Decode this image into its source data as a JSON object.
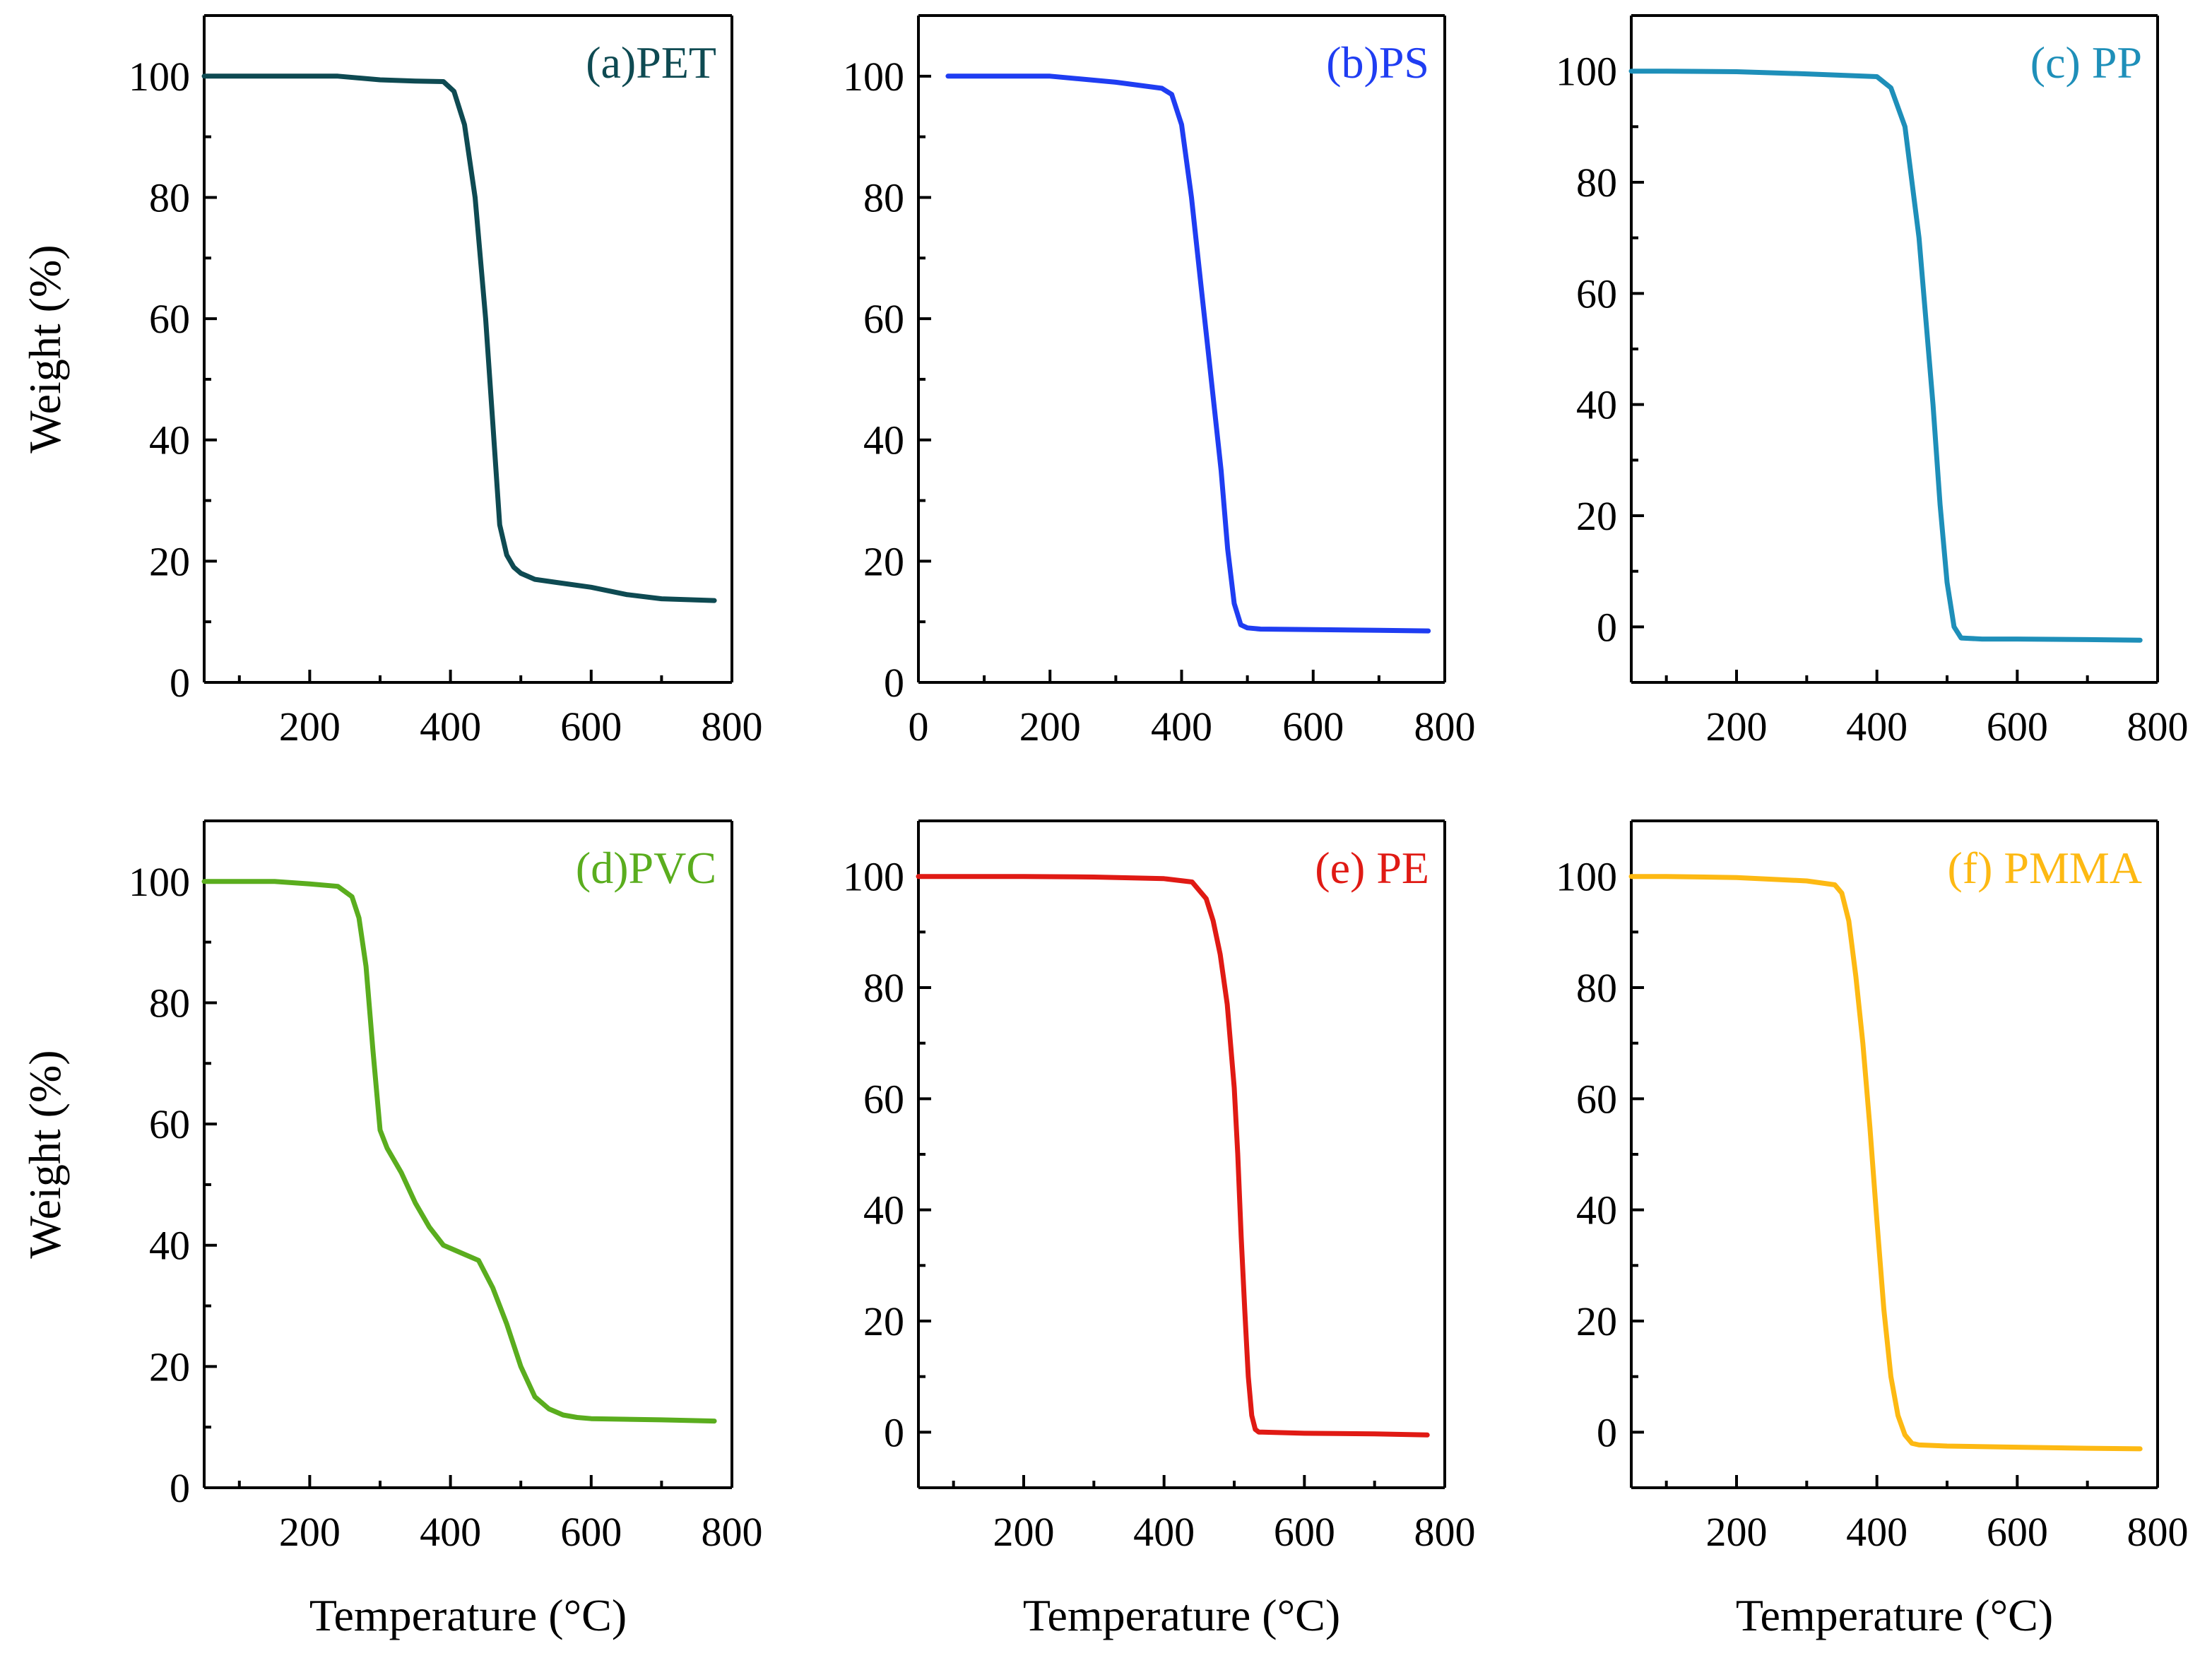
{
  "figure": {
    "xlabel": "Temperature (°C)",
    "ylabel": "Weight (%)"
  },
  "chart_data": [
    {
      "type": "line",
      "title": "(a)PET",
      "color": "#0e4a52",
      "xlabel": "",
      "ylabel": "Weight (%)",
      "xlim": [
        50,
        800
      ],
      "ylim": [
        0,
        110
      ],
      "xticks": [
        200,
        400,
        600,
        800
      ],
      "yticks": [
        0,
        20,
        40,
        60,
        80,
        100
      ],
      "x": [
        50,
        100,
        200,
        240,
        300,
        350,
        390,
        405,
        420,
        435,
        450,
        460,
        470,
        480,
        490,
        500,
        520,
        550,
        600,
        650,
        700,
        775
      ],
      "y": [
        100,
        100,
        100,
        100,
        99.4,
        99.2,
        99.1,
        97.5,
        92,
        80,
        60,
        43,
        26,
        21,
        19,
        18,
        17,
        16.5,
        15.7,
        14.5,
        13.8,
        13.5
      ]
    },
    {
      "type": "line",
      "title": "(b)PS",
      "color": "#1f3df2",
      "xlabel": "",
      "ylabel": "",
      "xlim": [
        0,
        800
      ],
      "ylim": [
        0,
        110
      ],
      "xticks": [
        0,
        200,
        400,
        600,
        800
      ],
      "yticks": [
        0,
        20,
        40,
        60,
        80,
        100
      ],
      "x": [
        45,
        100,
        200,
        300,
        370,
        385,
        400,
        415,
        430,
        440,
        450,
        460,
        470,
        480,
        490,
        500,
        520,
        600,
        700,
        775
      ],
      "y": [
        100,
        100,
        100,
        99,
        98,
        97,
        92,
        80,
        65,
        55,
        45,
        35,
        22,
        13,
        9.5,
        9,
        8.8,
        8.7,
        8.6,
        8.5
      ]
    },
    {
      "type": "line",
      "title": "(c) PP",
      "color": "#1e8fb9",
      "xlabel": "",
      "ylabel": "",
      "xlim": [
        50,
        800
      ],
      "ylim": [
        -10,
        110
      ],
      "xticks": [
        200,
        400,
        600,
        800
      ],
      "yticks": [
        0,
        20,
        40,
        60,
        80,
        100
      ],
      "x": [
        50,
        100,
        200,
        300,
        400,
        420,
        440,
        460,
        470,
        480,
        490,
        500,
        510,
        520,
        550,
        600,
        700,
        775
      ],
      "y": [
        100,
        100,
        99.9,
        99.5,
        99,
        97,
        90,
        70,
        55,
        40,
        22,
        8,
        0,
        -2,
        -2.2,
        -2.2,
        -2.3,
        -2.4
      ]
    },
    {
      "type": "line",
      "title": "(d)PVC",
      "color": "#5aad1e",
      "xlabel": "Temperature (°C)",
      "ylabel": "Weight (%)",
      "xlim": [
        50,
        800
      ],
      "ylim": [
        0,
        110
      ],
      "xticks": [
        200,
        400,
        600,
        800
      ],
      "yticks": [
        0,
        20,
        40,
        60,
        80,
        100
      ],
      "x": [
        50,
        100,
        150,
        200,
        240,
        260,
        270,
        280,
        290,
        300,
        310,
        330,
        350,
        370,
        390,
        400,
        420,
        440,
        460,
        480,
        500,
        520,
        540,
        560,
        580,
        600,
        700,
        775
      ],
      "y": [
        100,
        100,
        100,
        99.6,
        99.2,
        97.5,
        94,
        86,
        72,
        59,
        56,
        52,
        47,
        43,
        40,
        39.5,
        38.5,
        37.5,
        33,
        27,
        20,
        15,
        13,
        12,
        11.6,
        11.4,
        11.2,
        11
      ]
    },
    {
      "type": "line",
      "title": "(e) PE",
      "color": "#e01a14",
      "xlabel": "Temperature (°C)",
      "ylabel": "",
      "xlim": [
        50,
        800
      ],
      "ylim": [
        -10,
        110
      ],
      "xticks": [
        200,
        400,
        600,
        800
      ],
      "yticks": [
        0,
        20,
        40,
        60,
        80,
        100
      ],
      "x": [
        50,
        100,
        200,
        300,
        400,
        440,
        460,
        470,
        480,
        490,
        500,
        505,
        510,
        515,
        520,
        525,
        530,
        535,
        540,
        600,
        700,
        775
      ],
      "y": [
        100,
        100,
        100,
        99.9,
        99.6,
        99,
        96,
        92,
        86,
        77,
        62,
        50,
        35,
        22,
        10,
        3,
        0.5,
        0,
        0,
        -0.2,
        -0.3,
        -0.5
      ]
    },
    {
      "type": "line",
      "title": "(f) PMMA",
      "color": "#fdb913",
      "xlabel": "Temperature (°C)",
      "ylabel": "",
      "xlim": [
        50,
        800
      ],
      "ylim": [
        -10,
        110
      ],
      "xticks": [
        200,
        400,
        600,
        800
      ],
      "yticks": [
        0,
        20,
        40,
        60,
        80,
        100
      ],
      "x": [
        50,
        100,
        200,
        300,
        340,
        350,
        360,
        370,
        380,
        390,
        400,
        410,
        420,
        430,
        440,
        450,
        460,
        500,
        600,
        700,
        775
      ],
      "y": [
        100,
        100,
        99.8,
        99.2,
        98.5,
        97,
        92,
        82,
        70,
        55,
        38,
        22,
        10,
        3,
        -0.5,
        -2,
        -2.3,
        -2.5,
        -2.7,
        -2.9,
        -3
      ]
    }
  ]
}
